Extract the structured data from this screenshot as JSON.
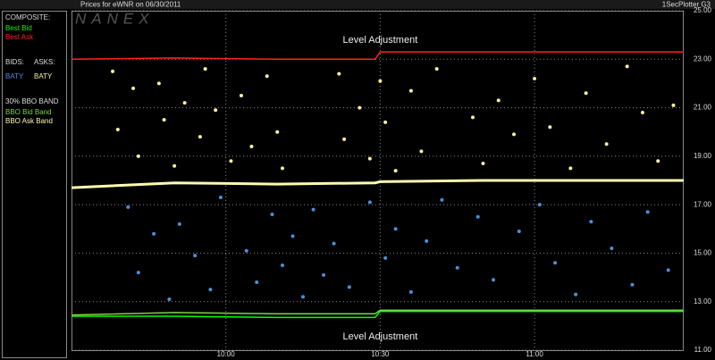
{
  "chart_data": {
    "type": "scatter",
    "title": "Prices for  eWNR  on  06/30/2011",
    "subtitle": "1SecPlotter G3",
    "watermark": "NANEX",
    "legend_headings": [
      "COMPOSITE:",
      "BIDS:",
      "ASKS:",
      "30% BBO BAND"
    ],
    "annotations": [
      "Level Adjustment",
      "Level Adjustment"
    ],
    "xlim": [
      570,
      689
    ],
    "xticks": [
      {
        "value": 600,
        "label": "10:00"
      },
      {
        "value": 630,
        "label": "10:30"
      },
      {
        "value": 660,
        "label": "11:00"
      }
    ],
    "ylim": [
      11,
      25
    ],
    "yticks": [
      {
        "value": 11,
        "label": "11.00"
      },
      {
        "value": 13,
        "label": "13.00"
      },
      {
        "value": 15,
        "label": "15.00"
      },
      {
        "value": 17,
        "label": "17.00"
      },
      {
        "value": 19,
        "label": "19.00"
      },
      {
        "value": 21,
        "label": "21.00"
      },
      {
        "value": 23,
        "label": "23.00"
      },
      {
        "value": 25,
        "label": "25.00"
      }
    ],
    "grid": true,
    "series": [
      {
        "name": "Best Bid",
        "type": "line",
        "color": "#00ff00",
        "x": [
          570,
          590,
          610,
          629,
          630,
          650,
          670,
          689
        ],
        "values": [
          12.4,
          12.4,
          12.35,
          12.35,
          12.6,
          12.6,
          12.6,
          12.6
        ]
      },
      {
        "name": "Best Ask",
        "type": "line",
        "color": "#ff2020",
        "x": [
          570,
          590,
          610,
          629,
          630,
          650,
          670,
          689
        ],
        "values": [
          23.0,
          23.05,
          23.0,
          23.0,
          23.3,
          23.3,
          23.3,
          23.3
        ]
      },
      {
        "name": "BATY",
        "type": "scatter",
        "color": "#4a90d9",
        "x": [
          581,
          583,
          586,
          589,
          591,
          594,
          597,
          599,
          604,
          606,
          609,
          611,
          613,
          615,
          617,
          619,
          621,
          624,
          628,
          631,
          633,
          636,
          639,
          642,
          645,
          649,
          652,
          657,
          661,
          664,
          668,
          671,
          675,
          679,
          682,
          686
        ],
        "values": [
          16.9,
          14.2,
          15.8,
          13.1,
          16.2,
          14.9,
          13.5,
          17.3,
          15.1,
          13.8,
          16.6,
          14.5,
          15.7,
          13.2,
          16.8,
          14.1,
          15.4,
          13.6,
          17.1,
          14.8,
          16.0,
          13.4,
          15.5,
          17.2,
          14.4,
          16.5,
          13.9,
          15.9,
          17.0,
          14.6,
          13.3,
          16.3,
          15.2,
          13.7,
          16.7,
          14.3
        ]
      },
      {
        "name": "BATY",
        "type": "scatter",
        "color": "#f5f0a0",
        "x": [
          578,
          579,
          582,
          583,
          587,
          588,
          590,
          592,
          595,
          596,
          598,
          601,
          603,
          605,
          608,
          610,
          611,
          622,
          623,
          626,
          628,
          630,
          631,
          633,
          636,
          638,
          641,
          648,
          650,
          653,
          656,
          660,
          663,
          667,
          670,
          674,
          678,
          681,
          684,
          687
        ],
        "values": [
          22.5,
          20.1,
          21.8,
          19.0,
          22.0,
          20.5,
          18.6,
          21.2,
          19.8,
          22.6,
          20.9,
          18.8,
          21.5,
          19.4,
          22.3,
          20.0,
          18.5,
          22.4,
          19.7,
          21.0,
          18.9,
          22.1,
          20.4,
          18.4,
          21.7,
          19.2,
          22.6,
          20.6,
          18.7,
          21.3,
          19.9,
          22.2,
          20.2,
          18.5,
          21.6,
          19.5,
          22.7,
          20.8,
          18.8,
          21.1
        ]
      },
      {
        "name": "BBO Bid Band",
        "type": "line",
        "color": "#7fd04a",
        "x": [
          570,
          590,
          610,
          629,
          630,
          650,
          670,
          689
        ],
        "values": [
          12.45,
          12.55,
          12.5,
          12.5,
          12.65,
          12.65,
          12.65,
          12.65
        ]
      },
      {
        "name": "BBO Ask Band",
        "type": "line",
        "color": "#fffbb0",
        "x": [
          570,
          590,
          610,
          629,
          630,
          650,
          670,
          689
        ],
        "values": [
          17.7,
          17.9,
          17.85,
          17.9,
          17.95,
          18.0,
          18.0,
          18.0
        ]
      }
    ]
  }
}
